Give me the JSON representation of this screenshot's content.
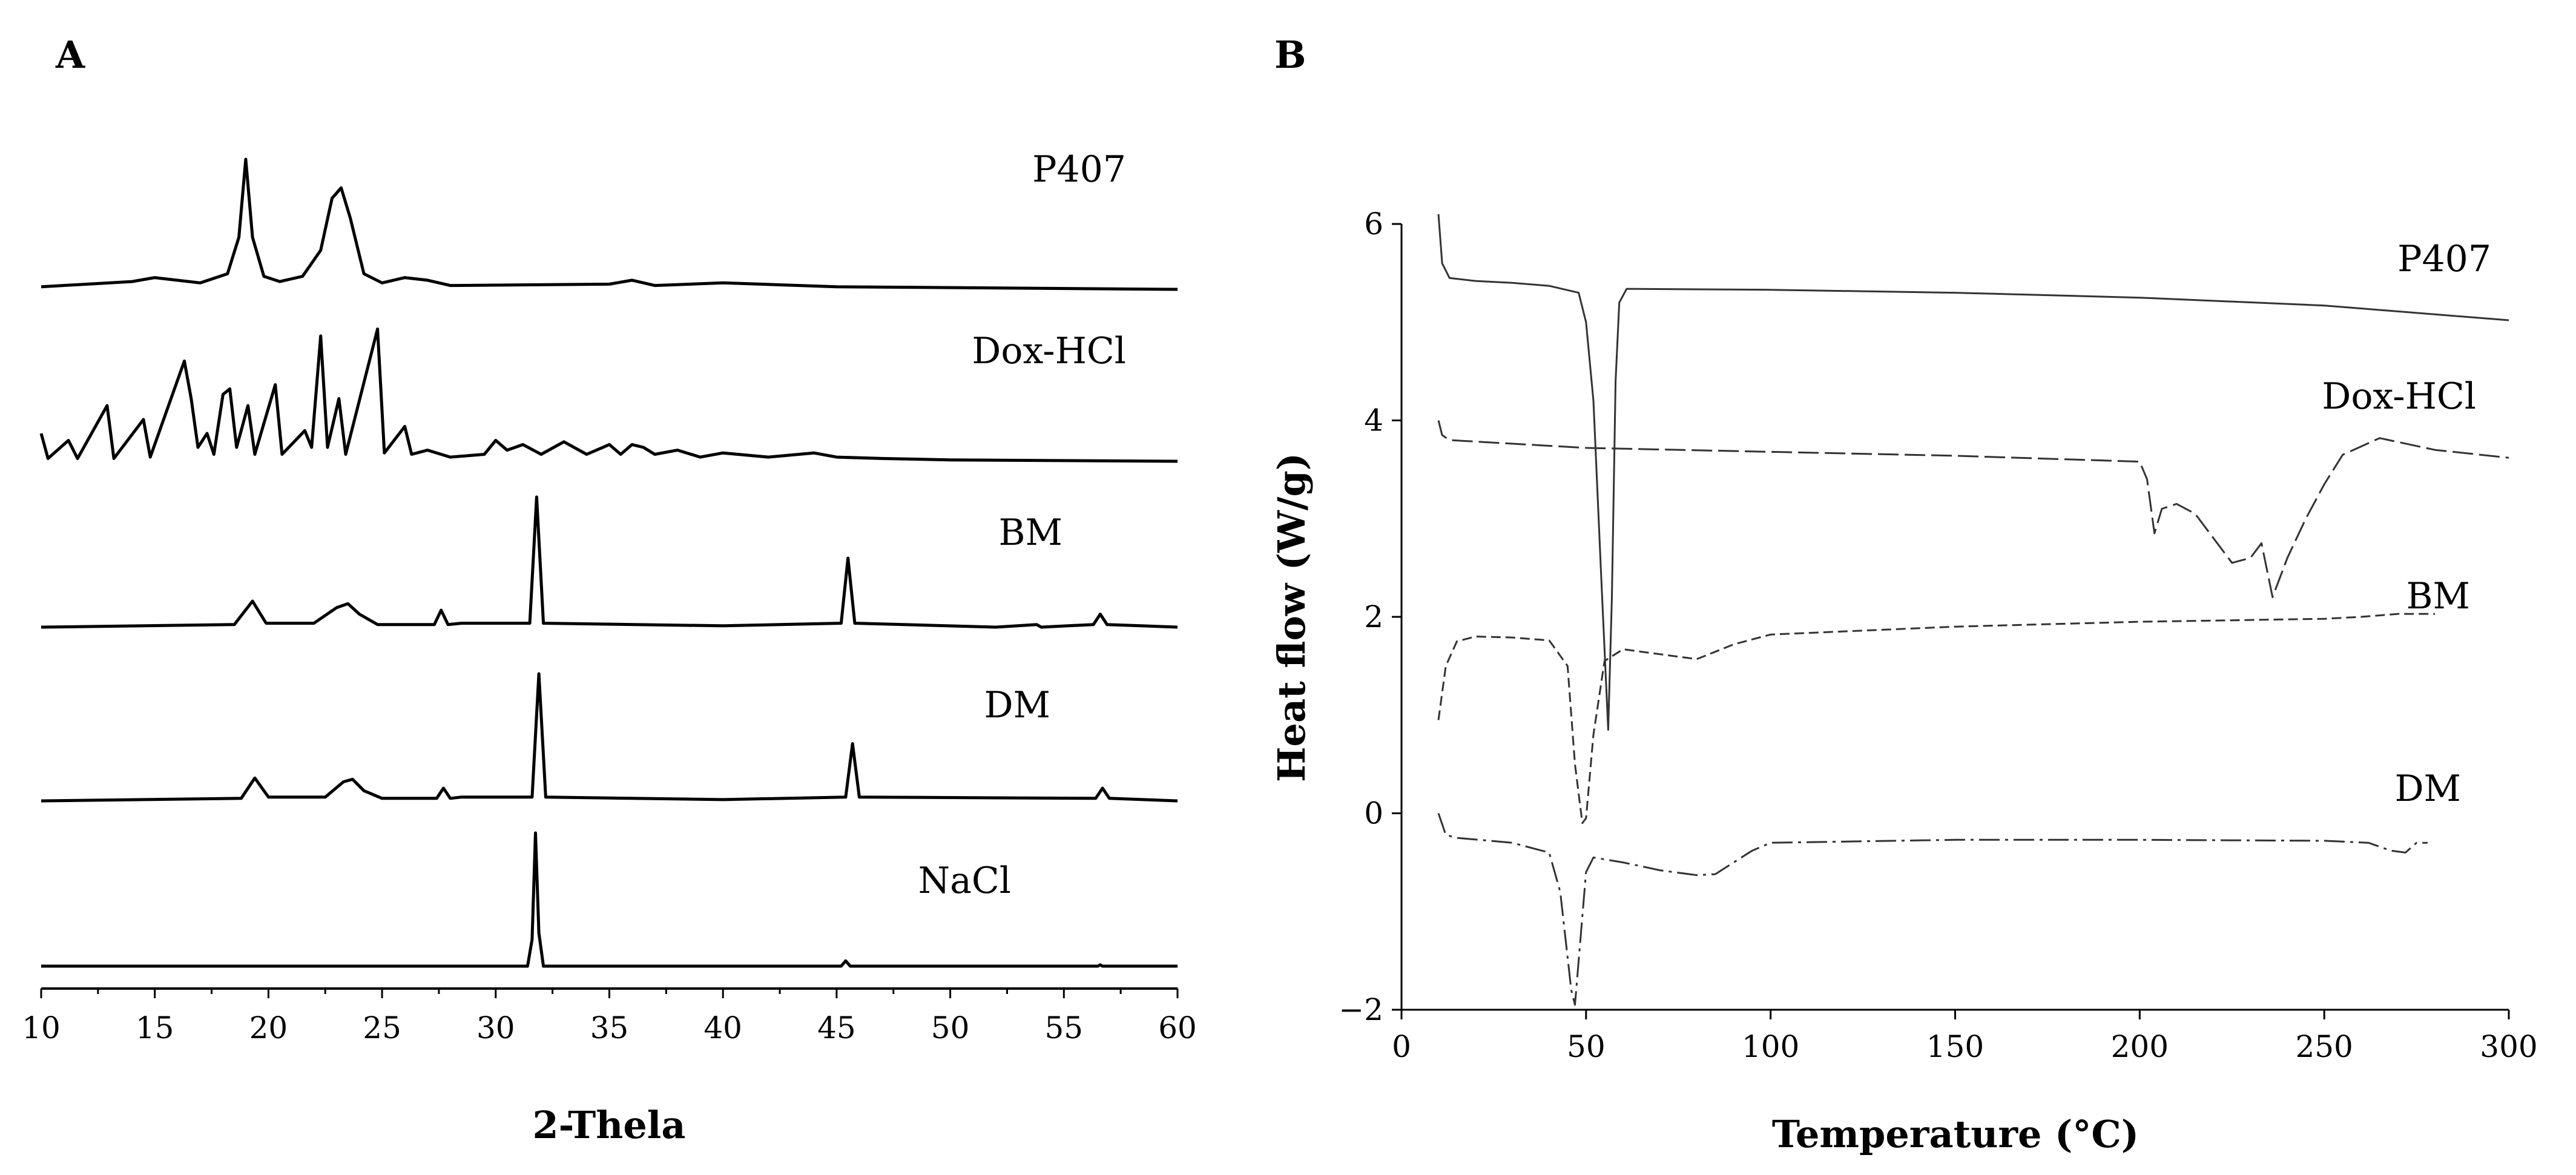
{
  "chart_data": [
    {
      "panel": "A",
      "type": "line",
      "title": "",
      "xlabel": "2-Thela",
      "ylabel": "",
      "xlim": [
        10,
        60
      ],
      "xticks": [
        10,
        15,
        20,
        25,
        30,
        35,
        40,
        45,
        50,
        55,
        60
      ],
      "grid": false,
      "series": [
        {
          "name": "P407",
          "baseline": 0.0,
          "points": [
            [
              10,
              0.02
            ],
            [
              14,
              0.06
            ],
            [
              15,
              0.09
            ],
            [
              17,
              0.05
            ],
            [
              18.2,
              0.12
            ],
            [
              18.7,
              0.4
            ],
            [
              19.0,
              1.0
            ],
            [
              19.3,
              0.4
            ],
            [
              19.8,
              0.1
            ],
            [
              20.5,
              0.06
            ],
            [
              21.5,
              0.1
            ],
            [
              22.3,
              0.3
            ],
            [
              22.8,
              0.7
            ],
            [
              23.2,
              0.78
            ],
            [
              23.6,
              0.55
            ],
            [
              24.2,
              0.12
            ],
            [
              25,
              0.05
            ],
            [
              26,
              0.09
            ],
            [
              27,
              0.07
            ],
            [
              28,
              0.03
            ],
            [
              35,
              0.04
            ],
            [
              36,
              0.07
            ],
            [
              37,
              0.03
            ],
            [
              40,
              0.05
            ],
            [
              45,
              0.02
            ],
            [
              60,
              0.0
            ]
          ]
        },
        {
          "name": "Dox-HCl",
          "baseline": 0.0,
          "points": [
            [
              10,
              0.2
            ],
            [
              10.3,
              0.02
            ],
            [
              11.2,
              0.15
            ],
            [
              11.6,
              0.02
            ],
            [
              12.9,
              0.4
            ],
            [
              13.2,
              0.02
            ],
            [
              14.5,
              0.3
            ],
            [
              14.8,
              0.03
            ],
            [
              16.3,
              0.72
            ],
            [
              16.6,
              0.45
            ],
            [
              16.9,
              0.1
            ],
            [
              17.3,
              0.2
            ],
            [
              17.6,
              0.05
            ],
            [
              18.0,
              0.48
            ],
            [
              18.3,
              0.52
            ],
            [
              18.6,
              0.1
            ],
            [
              19.1,
              0.4
            ],
            [
              19.4,
              0.05
            ],
            [
              20.3,
              0.55
            ],
            [
              20.6,
              0.05
            ],
            [
              21.6,
              0.22
            ],
            [
              21.9,
              0.1
            ],
            [
              22.3,
              0.9
            ],
            [
              22.6,
              0.1
            ],
            [
              23.1,
              0.45
            ],
            [
              23.4,
              0.05
            ],
            [
              24.8,
              0.95
            ],
            [
              25.1,
              0.06
            ],
            [
              26.0,
              0.25
            ],
            [
              26.3,
              0.05
            ],
            [
              27,
              0.08
            ],
            [
              28,
              0.03
            ],
            [
              29.5,
              0.05
            ],
            [
              30,
              0.15
            ],
            [
              30.5,
              0.08
            ],
            [
              31.2,
              0.12
            ],
            [
              32,
              0.05
            ],
            [
              33,
              0.14
            ],
            [
              34,
              0.05
            ],
            [
              35,
              0.12
            ],
            [
              35.5,
              0.05
            ],
            [
              36,
              0.12
            ],
            [
              36.5,
              0.1
            ],
            [
              37,
              0.05
            ],
            [
              38,
              0.08
            ],
            [
              39,
              0.03
            ],
            [
              40,
              0.06
            ],
            [
              42,
              0.03
            ],
            [
              44,
              0.06
            ],
            [
              45,
              0.03
            ],
            [
              47,
              0.02
            ],
            [
              50,
              0.01
            ],
            [
              60,
              0.0
            ]
          ]
        },
        {
          "name": "BM",
          "baseline": 0.0,
          "points": [
            [
              10,
              0.0
            ],
            [
              18.5,
              0.02
            ],
            [
              19.3,
              0.2
            ],
            [
              19.9,
              0.03
            ],
            [
              22,
              0.03
            ],
            [
              23.0,
              0.15
            ],
            [
              23.5,
              0.18
            ],
            [
              24.0,
              0.1
            ],
            [
              24.8,
              0.02
            ],
            [
              27.3,
              0.02
            ],
            [
              27.6,
              0.13
            ],
            [
              27.9,
              0.02
            ],
            [
              28.5,
              0.03
            ],
            [
              31.5,
              0.03
            ],
            [
              31.8,
              1.0
            ],
            [
              32.1,
              0.03
            ],
            [
              40,
              0.01
            ],
            [
              45.2,
              0.03
            ],
            [
              45.5,
              0.53
            ],
            [
              45.8,
              0.03
            ],
            [
              52,
              0.0
            ],
            [
              53.8,
              0.02
            ],
            [
              54,
              0.0
            ],
            [
              56.3,
              0.02
            ],
            [
              56.6,
              0.1
            ],
            [
              56.9,
              0.02
            ],
            [
              60,
              0.0
            ]
          ]
        },
        {
          "name": "DM",
          "baseline": 0.0,
          "points": [
            [
              10,
              0.0
            ],
            [
              18.8,
              0.02
            ],
            [
              19.4,
              0.18
            ],
            [
              20.0,
              0.03
            ],
            [
              22.5,
              0.03
            ],
            [
              23.3,
              0.15
            ],
            [
              23.7,
              0.17
            ],
            [
              24.2,
              0.08
            ],
            [
              25.0,
              0.02
            ],
            [
              27.4,
              0.02
            ],
            [
              27.7,
              0.1
            ],
            [
              28.0,
              0.02
            ],
            [
              28.5,
              0.03
            ],
            [
              31.6,
              0.03
            ],
            [
              31.9,
              1.0
            ],
            [
              32.2,
              0.03
            ],
            [
              40,
              0.01
            ],
            [
              45.4,
              0.03
            ],
            [
              45.7,
              0.45
            ],
            [
              46.0,
              0.03
            ],
            [
              56.4,
              0.02
            ],
            [
              56.7,
              0.1
            ],
            [
              57.0,
              0.02
            ],
            [
              60,
              0.0
            ]
          ]
        },
        {
          "name": "NaCl",
          "baseline": 0.0,
          "points": [
            [
              10,
              0.0
            ],
            [
              31.4,
              0.0
            ],
            [
              31.6,
              0.2
            ],
            [
              31.75,
              1.0
            ],
            [
              31.9,
              0.25
            ],
            [
              32.1,
              0.0
            ],
            [
              45.2,
              0.0
            ],
            [
              45.4,
              0.04
            ],
            [
              45.6,
              0.0
            ],
            [
              56.5,
              0.0
            ],
            [
              56.6,
              0.01
            ],
            [
              56.7,
              0.0
            ],
            [
              60,
              0.0
            ]
          ]
        }
      ]
    },
    {
      "panel": "B",
      "type": "line",
      "title": "",
      "xlabel": "Temperature (°C)",
      "ylabel": "Heat flow (W/g)",
      "xlim": [
        0,
        300
      ],
      "ylim": [
        -2,
        6
      ],
      "xticks": [
        0,
        50,
        100,
        150,
        200,
        250,
        300
      ],
      "yticks": [
        -2,
        0,
        2,
        4,
        6
      ],
      "grid": false,
      "series": [
        {
          "name": "P407",
          "style": "solid",
          "points": [
            [
              10,
              6.1
            ],
            [
              11,
              5.6
            ],
            [
              13,
              5.45
            ],
            [
              20,
              5.42
            ],
            [
              30,
              5.4
            ],
            [
              40,
              5.37
            ],
            [
              48,
              5.3
            ],
            [
              50,
              5.0
            ],
            [
              52,
              4.2
            ],
            [
              54,
              2.5
            ],
            [
              56,
              0.85
            ],
            [
              57,
              2.2
            ],
            [
              58,
              4.4
            ],
            [
              59,
              5.2
            ],
            [
              61,
              5.34
            ],
            [
              100,
              5.33
            ],
            [
              150,
              5.3
            ],
            [
              200,
              5.25
            ],
            [
              250,
              5.17
            ],
            [
              300,
              5.02
            ]
          ]
        },
        {
          "name": "Dox-HCl",
          "style": "long-dash",
          "points": [
            [
              10,
              4.0
            ],
            [
              11,
              3.85
            ],
            [
              13,
              3.8
            ],
            [
              50,
              3.72
            ],
            [
              100,
              3.68
            ],
            [
              150,
              3.64
            ],
            [
              200,
              3.58
            ],
            [
              202,
              3.4
            ],
            [
              204,
              2.85
            ],
            [
              206,
              3.1
            ],
            [
              210,
              3.15
            ],
            [
              215,
              3.05
            ],
            [
              220,
              2.8
            ],
            [
              225,
              2.55
            ],
            [
              230,
              2.6
            ],
            [
              233,
              2.75
            ],
            [
              236,
              2.2
            ],
            [
              240,
              2.6
            ],
            [
              245,
              3.0
            ],
            [
              250,
              3.35
            ],
            [
              255,
              3.65
            ],
            [
              265,
              3.82
            ],
            [
              280,
              3.7
            ],
            [
              300,
              3.62
            ]
          ]
        },
        {
          "name": "BM",
          "style": "short-dash",
          "points": [
            [
              10,
              0.95
            ],
            [
              12,
              1.5
            ],
            [
              15,
              1.75
            ],
            [
              20,
              1.8
            ],
            [
              30,
              1.79
            ],
            [
              40,
              1.76
            ],
            [
              45,
              1.5
            ],
            [
              47,
              0.5
            ],
            [
              49,
              -0.1
            ],
            [
              50,
              -0.05
            ],
            [
              52,
              0.8
            ],
            [
              55,
              1.55
            ],
            [
              60,
              1.67
            ],
            [
              70,
              1.62
            ],
            [
              80,
              1.57
            ],
            [
              90,
              1.72
            ],
            [
              100,
              1.82
            ],
            [
              150,
              1.9
            ],
            [
              200,
              1.95
            ],
            [
              250,
              1.98
            ],
            [
              260,
              2.0
            ],
            [
              270,
              2.03
            ],
            [
              280,
              2.03
            ]
          ]
        },
        {
          "name": "DM",
          "style": "dash-dot",
          "points": [
            [
              10,
              0.0
            ],
            [
              12,
              -0.22
            ],
            [
              15,
              -0.25
            ],
            [
              30,
              -0.3
            ],
            [
              40,
              -0.4
            ],
            [
              43,
              -0.8
            ],
            [
              46,
              -1.8
            ],
            [
              47,
              -1.95
            ],
            [
              48,
              -1.5
            ],
            [
              50,
              -0.6
            ],
            [
              52,
              -0.45
            ],
            [
              60,
              -0.5
            ],
            [
              70,
              -0.58
            ],
            [
              80,
              -0.63
            ],
            [
              85,
              -0.62
            ],
            [
              95,
              -0.38
            ],
            [
              100,
              -0.3
            ],
            [
              150,
              -0.27
            ],
            [
              200,
              -0.27
            ],
            [
              250,
              -0.28
            ],
            [
              262,
              -0.3
            ],
            [
              268,
              -0.38
            ],
            [
              272,
              -0.4
            ],
            [
              275,
              -0.3
            ],
            [
              278,
              -0.3
            ]
          ]
        }
      ]
    }
  ]
}
